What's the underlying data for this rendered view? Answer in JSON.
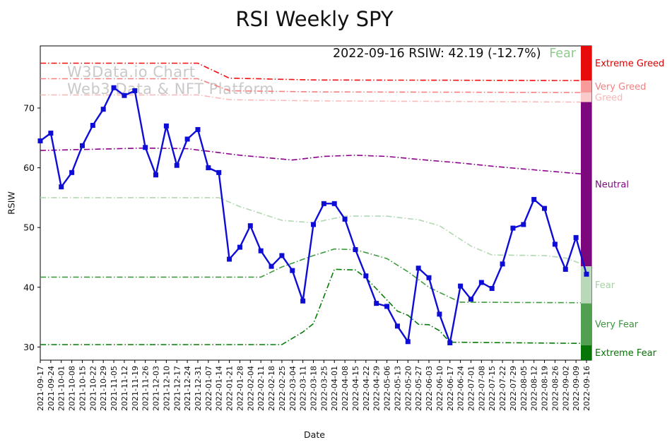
{
  "title": "RSI Weekly SPY",
  "annotation": {
    "text": "2022-09-16 RSIW: 42.19 (-12.7%)",
    "status": "Fear",
    "status_color": "#8fca8f"
  },
  "watermark": {
    "line1": "W3Data.io Chart",
    "line2": "Web3 Data & NFT Platform",
    "color": "#c9c9c9"
  },
  "chart_data": {
    "type": "line",
    "title": "RSI Weekly SPY",
    "xlabel": "Date",
    "ylabel": "RSIW",
    "ylim": [
      27.8,
      80.4
    ],
    "yticks": [
      30,
      40,
      50,
      60,
      70
    ],
    "grid": false,
    "legend_position": "none",
    "categories": [
      "2021-09-17",
      "2021-09-24",
      "2021-10-01",
      "2021-10-08",
      "2021-10-15",
      "2021-10-22",
      "2021-10-29",
      "2021-11-05",
      "2021-11-12",
      "2021-11-19",
      "2021-11-26",
      "2021-12-03",
      "2021-12-10",
      "2021-12-17",
      "2021-12-24",
      "2021-12-31",
      "2022-01-07",
      "2022-01-14",
      "2022-01-21",
      "2022-01-28",
      "2022-02-04",
      "2022-02-11",
      "2022-02-18",
      "2022-02-25",
      "2022-03-04",
      "2022-03-11",
      "2022-03-18",
      "2022-03-25",
      "2022-04-01",
      "2022-04-08",
      "2022-04-15",
      "2022-04-22",
      "2022-04-29",
      "2022-05-06",
      "2022-05-13",
      "2022-05-20",
      "2022-05-27",
      "2022-06-03",
      "2022-06-10",
      "2022-06-17",
      "2022-06-24",
      "2022-07-01",
      "2022-07-08",
      "2022-07-15",
      "2022-07-22",
      "2022-07-29",
      "2022-08-05",
      "2022-08-12",
      "2022-08-19",
      "2022-08-26",
      "2022-09-02",
      "2022-09-09",
      "2022-09-16"
    ],
    "series": [
      {
        "name": "RSIW",
        "color": "#0d0dd6",
        "marker": "square",
        "line_width": 2.4,
        "values": [
          64.5,
          65.8,
          56.8,
          59.2,
          63.7,
          67.1,
          69.8,
          73.4,
          72.1,
          72.9,
          63.4,
          58.8,
          67.0,
          60.4,
          64.8,
          66.4,
          60.0,
          59.2,
          44.7,
          46.7,
          50.3,
          46.1,
          43.5,
          45.3,
          42.8,
          37.7,
          50.5,
          54.0,
          54.0,
          51.4,
          46.3,
          41.9,
          37.3,
          36.8,
          33.5,
          30.9,
          43.2,
          41.6,
          35.5,
          30.7,
          40.2,
          38.0,
          40.8,
          39.8,
          43.9,
          49.9,
          50.5,
          54.7,
          53.2,
          47.2,
          43.0,
          48.32,
          42.19
        ]
      }
    ],
    "threshold_lines": [
      {
        "name": "Extreme Greed",
        "color": "#f50d0d",
        "style": "dashdot",
        "anchors": [
          [
            0,
            77.5
          ],
          [
            15,
            77.5
          ],
          [
            18,
            75.0
          ],
          [
            26,
            74.7
          ],
          [
            52,
            74.6
          ]
        ]
      },
      {
        "name": "Very Greed",
        "color": "#f87f7f",
        "style": "dashdot",
        "anchors": [
          [
            0,
            74.9
          ],
          [
            15,
            74.9
          ],
          [
            18,
            72.9
          ],
          [
            26,
            72.7
          ],
          [
            52,
            72.6
          ]
        ]
      },
      {
        "name": "Greed",
        "color": "#fbbaba",
        "style": "dashdot",
        "anchors": [
          [
            0,
            72.2
          ],
          [
            15,
            72.2
          ],
          [
            18,
            71.4
          ],
          [
            26,
            71.2
          ],
          [
            52,
            71.0
          ]
        ]
      },
      {
        "name": "Neutral",
        "color": "#8b008b",
        "style": "dashdot",
        "anchors": [
          [
            0,
            62.9
          ],
          [
            5,
            63.1
          ],
          [
            10,
            63.3
          ],
          [
            14,
            63.2
          ],
          [
            19,
            62.1
          ],
          [
            24,
            61.3
          ],
          [
            27,
            61.9
          ],
          [
            30,
            62.1
          ],
          [
            33,
            61.9
          ],
          [
            36,
            61.4
          ],
          [
            40,
            60.8
          ],
          [
            44,
            60.1
          ],
          [
            48,
            59.5
          ],
          [
            52,
            58.9
          ]
        ]
      },
      {
        "name": "Fear",
        "color": "#b2d8b2",
        "style": "dashdot",
        "anchors": [
          [
            0,
            55.0
          ],
          [
            17,
            55.0
          ],
          [
            19,
            53.5
          ],
          [
            23,
            51.2
          ],
          [
            26,
            50.8
          ],
          [
            29,
            51.9
          ],
          [
            33,
            51.9
          ],
          [
            36,
            51.3
          ],
          [
            38,
            50.3
          ],
          [
            41,
            46.9
          ],
          [
            43,
            45.4
          ],
          [
            48,
            45.3
          ],
          [
            50,
            44.9
          ],
          [
            52,
            43.6
          ]
        ]
      },
      {
        "name": "Very Fear",
        "color": "#3e9c3e",
        "style": "dashdot",
        "anchors": [
          [
            0,
            41.7
          ],
          [
            21,
            41.7
          ],
          [
            23,
            43.4
          ],
          [
            26,
            45.3
          ],
          [
            28,
            46.4
          ],
          [
            30,
            46.3
          ],
          [
            33,
            44.8
          ],
          [
            35,
            42.6
          ],
          [
            37,
            40.0
          ],
          [
            39,
            38.3
          ],
          [
            40,
            37.5
          ],
          [
            52,
            37.4
          ]
        ]
      },
      {
        "name": "Extreme Fear",
        "color": "#067d06",
        "style": "dashdot",
        "anchors": [
          [
            0,
            30.4
          ],
          [
            23,
            30.4
          ],
          [
            25,
            32.5
          ],
          [
            26,
            33.9
          ],
          [
            28,
            43.0
          ],
          [
            30,
            42.9
          ],
          [
            31,
            41.6
          ],
          [
            34,
            36.0
          ],
          [
            35,
            35.3
          ],
          [
            36,
            33.8
          ],
          [
            37.5,
            33.7
          ],
          [
            39,
            30.8
          ],
          [
            52,
            30.6
          ]
        ]
      }
    ],
    "zones": [
      {
        "label": "Extreme Greed",
        "from": 74.6,
        "to": 80.4,
        "color": "#e80b0b",
        "label_color": "#dd0000"
      },
      {
        "label": "Very Greed",
        "from": 72.6,
        "to": 74.6,
        "color": "#f89b9b",
        "label_color": "#f28080"
      },
      {
        "label": "Greed",
        "from": 71.0,
        "to": 72.6,
        "color": "#fbcaca",
        "label_color": "#f8b6b6"
      },
      {
        "label": "Neutral",
        "from": 43.5,
        "to": 71.0,
        "color": "#7d087d",
        "label_color": "#7d087d"
      },
      {
        "label": "Fear",
        "from": 37.3,
        "to": 43.5,
        "color": "#b9d8b9",
        "label_color": "#a9cfa9"
      },
      {
        "label": "Very Fear",
        "from": 30.3,
        "to": 37.3,
        "color": "#51a051",
        "label_color": "#3d943d"
      },
      {
        "label": "Extreme Fear",
        "from": 27.8,
        "to": 30.3,
        "color": "#077507",
        "label_color": "#077507"
      }
    ]
  }
}
